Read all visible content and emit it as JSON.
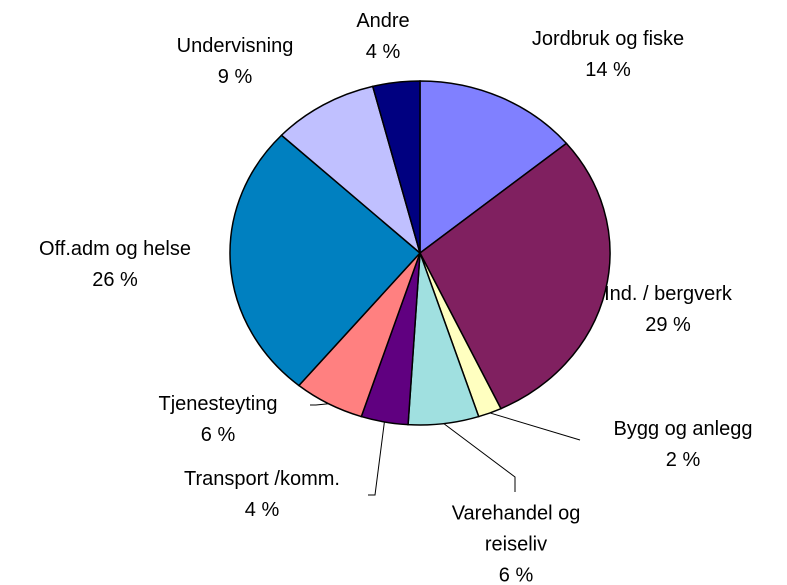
{
  "chart_data": {
    "type": "pie",
    "categories": [
      "Jordbruk og fiske",
      "Ind. / bergverk",
      "Bygg og anlegg",
      "Varehandel og reiseliv",
      "Transport /komm.",
      "Tjenesteyting",
      "Off.adm og helse",
      "Undervisning",
      "Andre"
    ],
    "values": [
      14,
      29,
      2,
      6,
      4,
      6,
      26,
      9,
      4
    ],
    "value_labels": [
      "14 %",
      "29 %",
      "2 %",
      "6 %",
      "4 %",
      "6 %",
      "26 %",
      "9 %",
      "4 %"
    ],
    "colors": [
      "#8080ff",
      "#802060",
      "#ffffc0",
      "#a0e0e0",
      "#600080",
      "#ff8080",
      "#0080c0",
      "#c0c0ff",
      "#000080"
    ]
  }
}
